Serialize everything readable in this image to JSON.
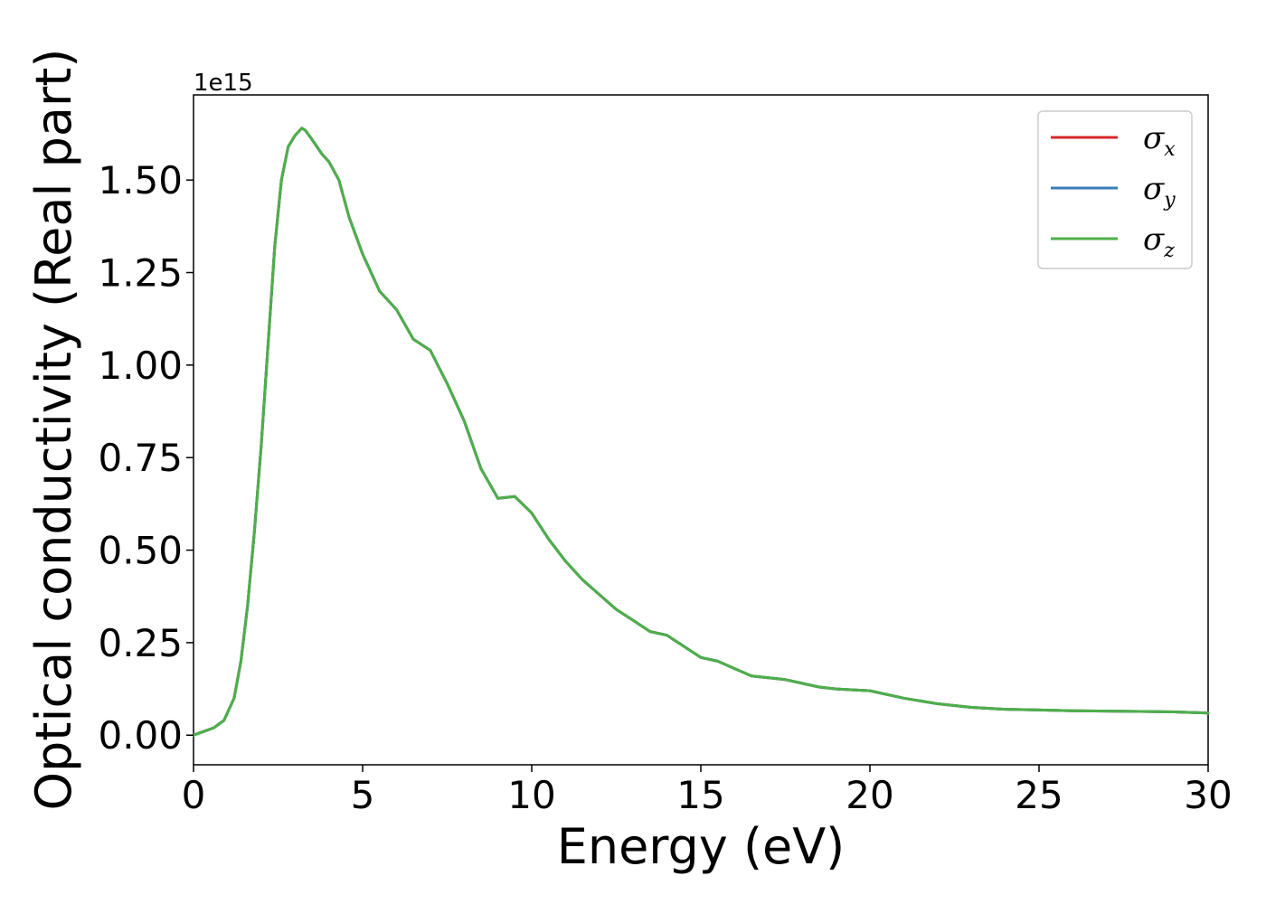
{
  "chart_data": {
    "type": "line",
    "xlabel": "Energy (eV)",
    "ylabel": "Optical conductivity (Real part)",
    "y_offset_text": "1e15",
    "y_scale_factor": 1000000000000000.0,
    "xlim": [
      0,
      30
    ],
    "ylim": [
      -0.08,
      1.73
    ],
    "x_ticks": [
      0,
      5,
      10,
      15,
      20,
      25,
      30
    ],
    "x_tick_labels": [
      "0",
      "5",
      "10",
      "15",
      "20",
      "25",
      "30"
    ],
    "y_ticks": [
      0.0,
      0.25,
      0.5,
      0.75,
      1.0,
      1.25,
      1.5
    ],
    "y_tick_labels": [
      "0.00",
      "0.25",
      "0.50",
      "0.75",
      "1.00",
      "1.25",
      "1.50"
    ],
    "grid": false,
    "legend_position": "top-right",
    "x": [
      0,
      0.3,
      0.6,
      0.9,
      1.2,
      1.4,
      1.6,
      1.8,
      2.0,
      2.2,
      2.4,
      2.6,
      2.8,
      3.0,
      3.2,
      3.3,
      3.5,
      3.8,
      4.0,
      4.3,
      4.6,
      5.0,
      5.5,
      6.0,
      6.5,
      7.0,
      7.5,
      8.0,
      8.5,
      9.0,
      9.5,
      10.0,
      10.5,
      11.0,
      11.5,
      12.0,
      12.5,
      13.0,
      13.5,
      14.0,
      14.5,
      15.0,
      15.5,
      16.0,
      16.5,
      17.0,
      17.5,
      18.0,
      18.5,
      19.0,
      20.0,
      21.0,
      22.0,
      23.0,
      24.0,
      25.0,
      26.0,
      27.0,
      28.0,
      29.0,
      30.0
    ],
    "series": [
      {
        "name": "σx",
        "color": "#d62728",
        "values": [
          0.0,
          0.01,
          0.02,
          0.04,
          0.1,
          0.2,
          0.35,
          0.55,
          0.78,
          1.05,
          1.32,
          1.5,
          1.59,
          1.62,
          1.64,
          1.635,
          1.61,
          1.57,
          1.55,
          1.5,
          1.4,
          1.3,
          1.2,
          1.15,
          1.07,
          1.04,
          0.95,
          0.85,
          0.72,
          0.64,
          0.645,
          0.6,
          0.53,
          0.47,
          0.42,
          0.38,
          0.34,
          0.31,
          0.28,
          0.27,
          0.24,
          0.21,
          0.2,
          0.18,
          0.16,
          0.155,
          0.15,
          0.14,
          0.13,
          0.125,
          0.12,
          0.1,
          0.085,
          0.075,
          0.07,
          0.068,
          0.066,
          0.065,
          0.064,
          0.063,
          0.06
        ]
      },
      {
        "name": "σy",
        "color": "#377eb8",
        "values": [
          0.0,
          0.01,
          0.02,
          0.04,
          0.1,
          0.2,
          0.35,
          0.55,
          0.78,
          1.05,
          1.32,
          1.5,
          1.59,
          1.62,
          1.64,
          1.635,
          1.61,
          1.57,
          1.55,
          1.5,
          1.4,
          1.3,
          1.2,
          1.15,
          1.07,
          1.04,
          0.95,
          0.85,
          0.72,
          0.64,
          0.645,
          0.6,
          0.53,
          0.47,
          0.42,
          0.38,
          0.34,
          0.31,
          0.28,
          0.27,
          0.24,
          0.21,
          0.2,
          0.18,
          0.16,
          0.155,
          0.15,
          0.14,
          0.13,
          0.125,
          0.12,
          0.1,
          0.085,
          0.075,
          0.07,
          0.068,
          0.066,
          0.065,
          0.064,
          0.063,
          0.06
        ]
      },
      {
        "name": "σz",
        "color": "#4daf4a",
        "values": [
          0.0,
          0.01,
          0.02,
          0.04,
          0.1,
          0.2,
          0.35,
          0.55,
          0.78,
          1.05,
          1.32,
          1.5,
          1.59,
          1.62,
          1.64,
          1.635,
          1.61,
          1.57,
          1.55,
          1.5,
          1.4,
          1.3,
          1.2,
          1.15,
          1.07,
          1.04,
          0.95,
          0.85,
          0.72,
          0.64,
          0.645,
          0.6,
          0.53,
          0.47,
          0.42,
          0.38,
          0.34,
          0.31,
          0.28,
          0.27,
          0.24,
          0.21,
          0.2,
          0.18,
          0.16,
          0.155,
          0.15,
          0.14,
          0.13,
          0.125,
          0.12,
          0.1,
          0.085,
          0.075,
          0.07,
          0.068,
          0.066,
          0.065,
          0.064,
          0.063,
          0.06
        ]
      }
    ],
    "legend": [
      {
        "symbol": "σ",
        "subscript": "x",
        "color": "#d62728"
      },
      {
        "symbol": "σ",
        "subscript": "y",
        "color": "#377eb8"
      },
      {
        "symbol": "σ",
        "subscript": "z",
        "color": "#4daf4a"
      }
    ]
  }
}
